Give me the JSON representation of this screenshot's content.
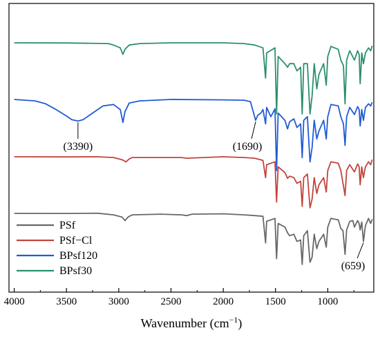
{
  "chart_data": {
    "type": "line",
    "xlabel": "Wavenumber (cm",
    "xlabel_sup": "−1",
    "xlabel_close": ")",
    "xlim": [
      4050,
      560
    ],
    "x_reversed": true,
    "xticks": [
      4000,
      3500,
      3000,
      2500,
      2000,
      1500,
      1000
    ],
    "y_axis_visible": false,
    "grid": false,
    "legend_position": "bottom-left",
    "series": [
      {
        "name": "PSf",
        "color": "#676767",
        "offset": 0,
        "points": [
          [
            4000,
            0.01
          ],
          [
            3500,
            0.011
          ],
          [
            3200,
            0.008
          ],
          [
            3050,
            0.03
          ],
          [
            2970,
            0.06
          ],
          [
            2940,
            0.11
          ],
          [
            2910,
            0.06
          ],
          [
            2870,
            0.03
          ],
          [
            2600,
            0.02
          ],
          [
            2400,
            0.03
          ],
          [
            2350,
            0.04
          ],
          [
            2300,
            0.02
          ],
          [
            2000,
            0.015
          ],
          [
            1800,
            0.03
          ],
          [
            1700,
            0.04
          ],
          [
            1620,
            0.05
          ],
          [
            1595,
            0.42
          ],
          [
            1585,
            0.12
          ],
          [
            1505,
            0.08
          ],
          [
            1490,
            0.64
          ],
          [
            1475,
            0.15
          ],
          [
            1410,
            0.2
          ],
          [
            1385,
            0.28
          ],
          [
            1365,
            0.32
          ],
          [
            1325,
            0.3
          ],
          [
            1295,
            0.4
          ],
          [
            1260,
            0.38
          ],
          [
            1245,
            0.72
          ],
          [
            1230,
            0.32
          ],
          [
            1195,
            0.25
          ],
          [
            1170,
            0.69
          ],
          [
            1150,
            0.62
          ],
          [
            1130,
            0.3
          ],
          [
            1105,
            0.5
          ],
          [
            1085,
            0.4
          ],
          [
            1040,
            0.3
          ],
          [
            1015,
            0.48
          ],
          [
            1000,
            0.2
          ],
          [
            970,
            0.08
          ],
          [
            900,
            0.1
          ],
          [
            875,
            0.22
          ],
          [
            855,
            0.25
          ],
          [
            835,
            0.58
          ],
          [
            820,
            0.24
          ],
          [
            790,
            0.12
          ],
          [
            760,
            0.11
          ],
          [
            745,
            0.2
          ],
          [
            715,
            0.11
          ],
          [
            700,
            0.15
          ],
          [
            690,
            0.24
          ],
          [
            675,
            0.13
          ],
          [
            659,
            0.4
          ],
          [
            640,
            0.18
          ],
          [
            610,
            0.08
          ],
          [
            590,
            0.15
          ],
          [
            575,
            0.09
          ]
        ]
      },
      {
        "name": "PSf−Cl",
        "color": "#c2433c",
        "offset": 82,
        "points": [
          [
            4000,
            0.01
          ],
          [
            3500,
            0.012
          ],
          [
            3200,
            0.01
          ],
          [
            3050,
            0.02
          ],
          [
            2970,
            0.05
          ],
          [
            2930,
            0.08
          ],
          [
            2900,
            0.04
          ],
          [
            2870,
            0.02
          ],
          [
            2400,
            0.02
          ],
          [
            2350,
            0.03
          ],
          [
            2000,
            0.01
          ],
          [
            1800,
            0.02
          ],
          [
            1700,
            0.03
          ],
          [
            1620,
            0.06
          ],
          [
            1595,
            0.3
          ],
          [
            1585,
            0.12
          ],
          [
            1505,
            0.08
          ],
          [
            1490,
            0.64
          ],
          [
            1475,
            0.15
          ],
          [
            1410,
            0.23
          ],
          [
            1385,
            0.31
          ],
          [
            1365,
            0.28
          ],
          [
            1325,
            0.3
          ],
          [
            1295,
            0.38
          ],
          [
            1260,
            0.35
          ],
          [
            1245,
            0.7
          ],
          [
            1230,
            0.3
          ],
          [
            1195,
            0.25
          ],
          [
            1170,
            0.72
          ],
          [
            1150,
            0.6
          ],
          [
            1130,
            0.3
          ],
          [
            1105,
            0.52
          ],
          [
            1085,
            0.4
          ],
          [
            1040,
            0.3
          ],
          [
            1015,
            0.5
          ],
          [
            1000,
            0.2
          ],
          [
            970,
            0.08
          ],
          [
            900,
            0.1
          ],
          [
            875,
            0.2
          ],
          [
            835,
            0.55
          ],
          [
            820,
            0.2
          ],
          [
            790,
            0.12
          ],
          [
            745,
            0.22
          ],
          [
            715,
            0.11
          ],
          [
            700,
            0.15
          ],
          [
            690,
            0.4
          ],
          [
            675,
            0.15
          ],
          [
            659,
            0.3
          ],
          [
            640,
            0.15
          ],
          [
            610,
            0.08
          ],
          [
            590,
            0.12
          ],
          [
            575,
            0.05
          ]
        ]
      },
      {
        "name": "BPsf120",
        "color": "#1f5bd4",
        "offset": 165,
        "points": [
          [
            4000,
            0.01
          ],
          [
            3800,
            0.03
          ],
          [
            3700,
            0.07
          ],
          [
            3600,
            0.15
          ],
          [
            3500,
            0.24
          ],
          [
            3450,
            0.29
          ],
          [
            3390,
            0.31
          ],
          [
            3340,
            0.29
          ],
          [
            3250,
            0.2
          ],
          [
            3150,
            0.1
          ],
          [
            3050,
            0.08
          ],
          [
            2985,
            0.15
          ],
          [
            2960,
            0.33
          ],
          [
            2940,
            0.18
          ],
          [
            2900,
            0.06
          ],
          [
            2800,
            0.03
          ],
          [
            2500,
            0.01
          ],
          [
            2000,
            0.015
          ],
          [
            1800,
            0.02
          ],
          [
            1740,
            0.04
          ],
          [
            1690,
            0.3
          ],
          [
            1670,
            0.23
          ],
          [
            1640,
            0.2
          ],
          [
            1620,
            0.15
          ],
          [
            1595,
            0.35
          ],
          [
            1585,
            0.12
          ],
          [
            1545,
            0.25
          ],
          [
            1505,
            0.14
          ],
          [
            1490,
            1.0
          ],
          [
            1475,
            0.2
          ],
          [
            1410,
            0.3
          ],
          [
            1385,
            0.42
          ],
          [
            1365,
            0.32
          ],
          [
            1325,
            0.28
          ],
          [
            1295,
            0.4
          ],
          [
            1260,
            0.35
          ],
          [
            1245,
            0.82
          ],
          [
            1230,
            0.3
          ],
          [
            1195,
            0.25
          ],
          [
            1170,
            0.88
          ],
          [
            1150,
            0.68
          ],
          [
            1130,
            0.3
          ],
          [
            1105,
            0.56
          ],
          [
            1085,
            0.45
          ],
          [
            1040,
            0.3
          ],
          [
            1015,
            0.56
          ],
          [
            1000,
            0.25
          ],
          [
            970,
            0.08
          ],
          [
            900,
            0.1
          ],
          [
            875,
            0.25
          ],
          [
            850,
            0.35
          ],
          [
            835,
            0.65
          ],
          [
            820,
            0.25
          ],
          [
            790,
            0.12
          ],
          [
            745,
            0.22
          ],
          [
            715,
            0.11
          ],
          [
            700,
            0.15
          ],
          [
            690,
            0.38
          ],
          [
            675,
            0.15
          ],
          [
            659,
            0.3
          ],
          [
            640,
            0.12
          ],
          [
            610,
            0.07
          ],
          [
            590,
            0.1
          ],
          [
            575,
            0.05
          ]
        ]
      },
      {
        "name": "BPsf30",
        "color": "#2a8f6c",
        "offset": 247,
        "points": [
          [
            4000,
            0.01
          ],
          [
            3500,
            0.012
          ],
          [
            3100,
            0.02
          ],
          [
            3050,
            0.04
          ],
          [
            2985,
            0.08
          ],
          [
            2960,
            0.17
          ],
          [
            2940,
            0.1
          ],
          [
            2900,
            0.04
          ],
          [
            2800,
            0.02
          ],
          [
            2500,
            0.01
          ],
          [
            2000,
            0.01
          ],
          [
            1800,
            0.02
          ],
          [
            1700,
            0.04
          ],
          [
            1620,
            0.08
          ],
          [
            1595,
            0.5
          ],
          [
            1585,
            0.15
          ],
          [
            1505,
            0.08
          ],
          [
            1490,
            1.0
          ],
          [
            1475,
            0.2
          ],
          [
            1410,
            0.3
          ],
          [
            1385,
            0.35
          ],
          [
            1365,
            0.3
          ],
          [
            1325,
            0.3
          ],
          [
            1295,
            0.4
          ],
          [
            1260,
            0.35
          ],
          [
            1245,
            1.0
          ],
          [
            1230,
            0.3
          ],
          [
            1195,
            0.3
          ],
          [
            1170,
            1.0
          ],
          [
            1150,
            0.75
          ],
          [
            1130,
            0.3
          ],
          [
            1105,
            0.65
          ],
          [
            1085,
            0.45
          ],
          [
            1040,
            0.3
          ],
          [
            1015,
            0.6
          ],
          [
            1000,
            0.2
          ],
          [
            970,
            0.06
          ],
          [
            900,
            0.1
          ],
          [
            875,
            0.25
          ],
          [
            850,
            0.33
          ],
          [
            835,
            0.86
          ],
          [
            820,
            0.25
          ],
          [
            790,
            0.12
          ],
          [
            745,
            0.25
          ],
          [
            715,
            0.12
          ],
          [
            700,
            0.17
          ],
          [
            690,
            0.58
          ],
          [
            675,
            0.15
          ],
          [
            659,
            0.3
          ],
          [
            640,
            0.15
          ],
          [
            610,
            0.08
          ],
          [
            590,
            0.12
          ],
          [
            575,
            0.05
          ]
        ]
      }
    ],
    "annotations": [
      {
        "text": "(3390)",
        "series": "BPsf120",
        "x": 3390
      },
      {
        "text": "(1690)",
        "series": "BPsf120",
        "x": 1690
      },
      {
        "text": "(659)",
        "series": "PSf",
        "x": 659
      }
    ]
  }
}
